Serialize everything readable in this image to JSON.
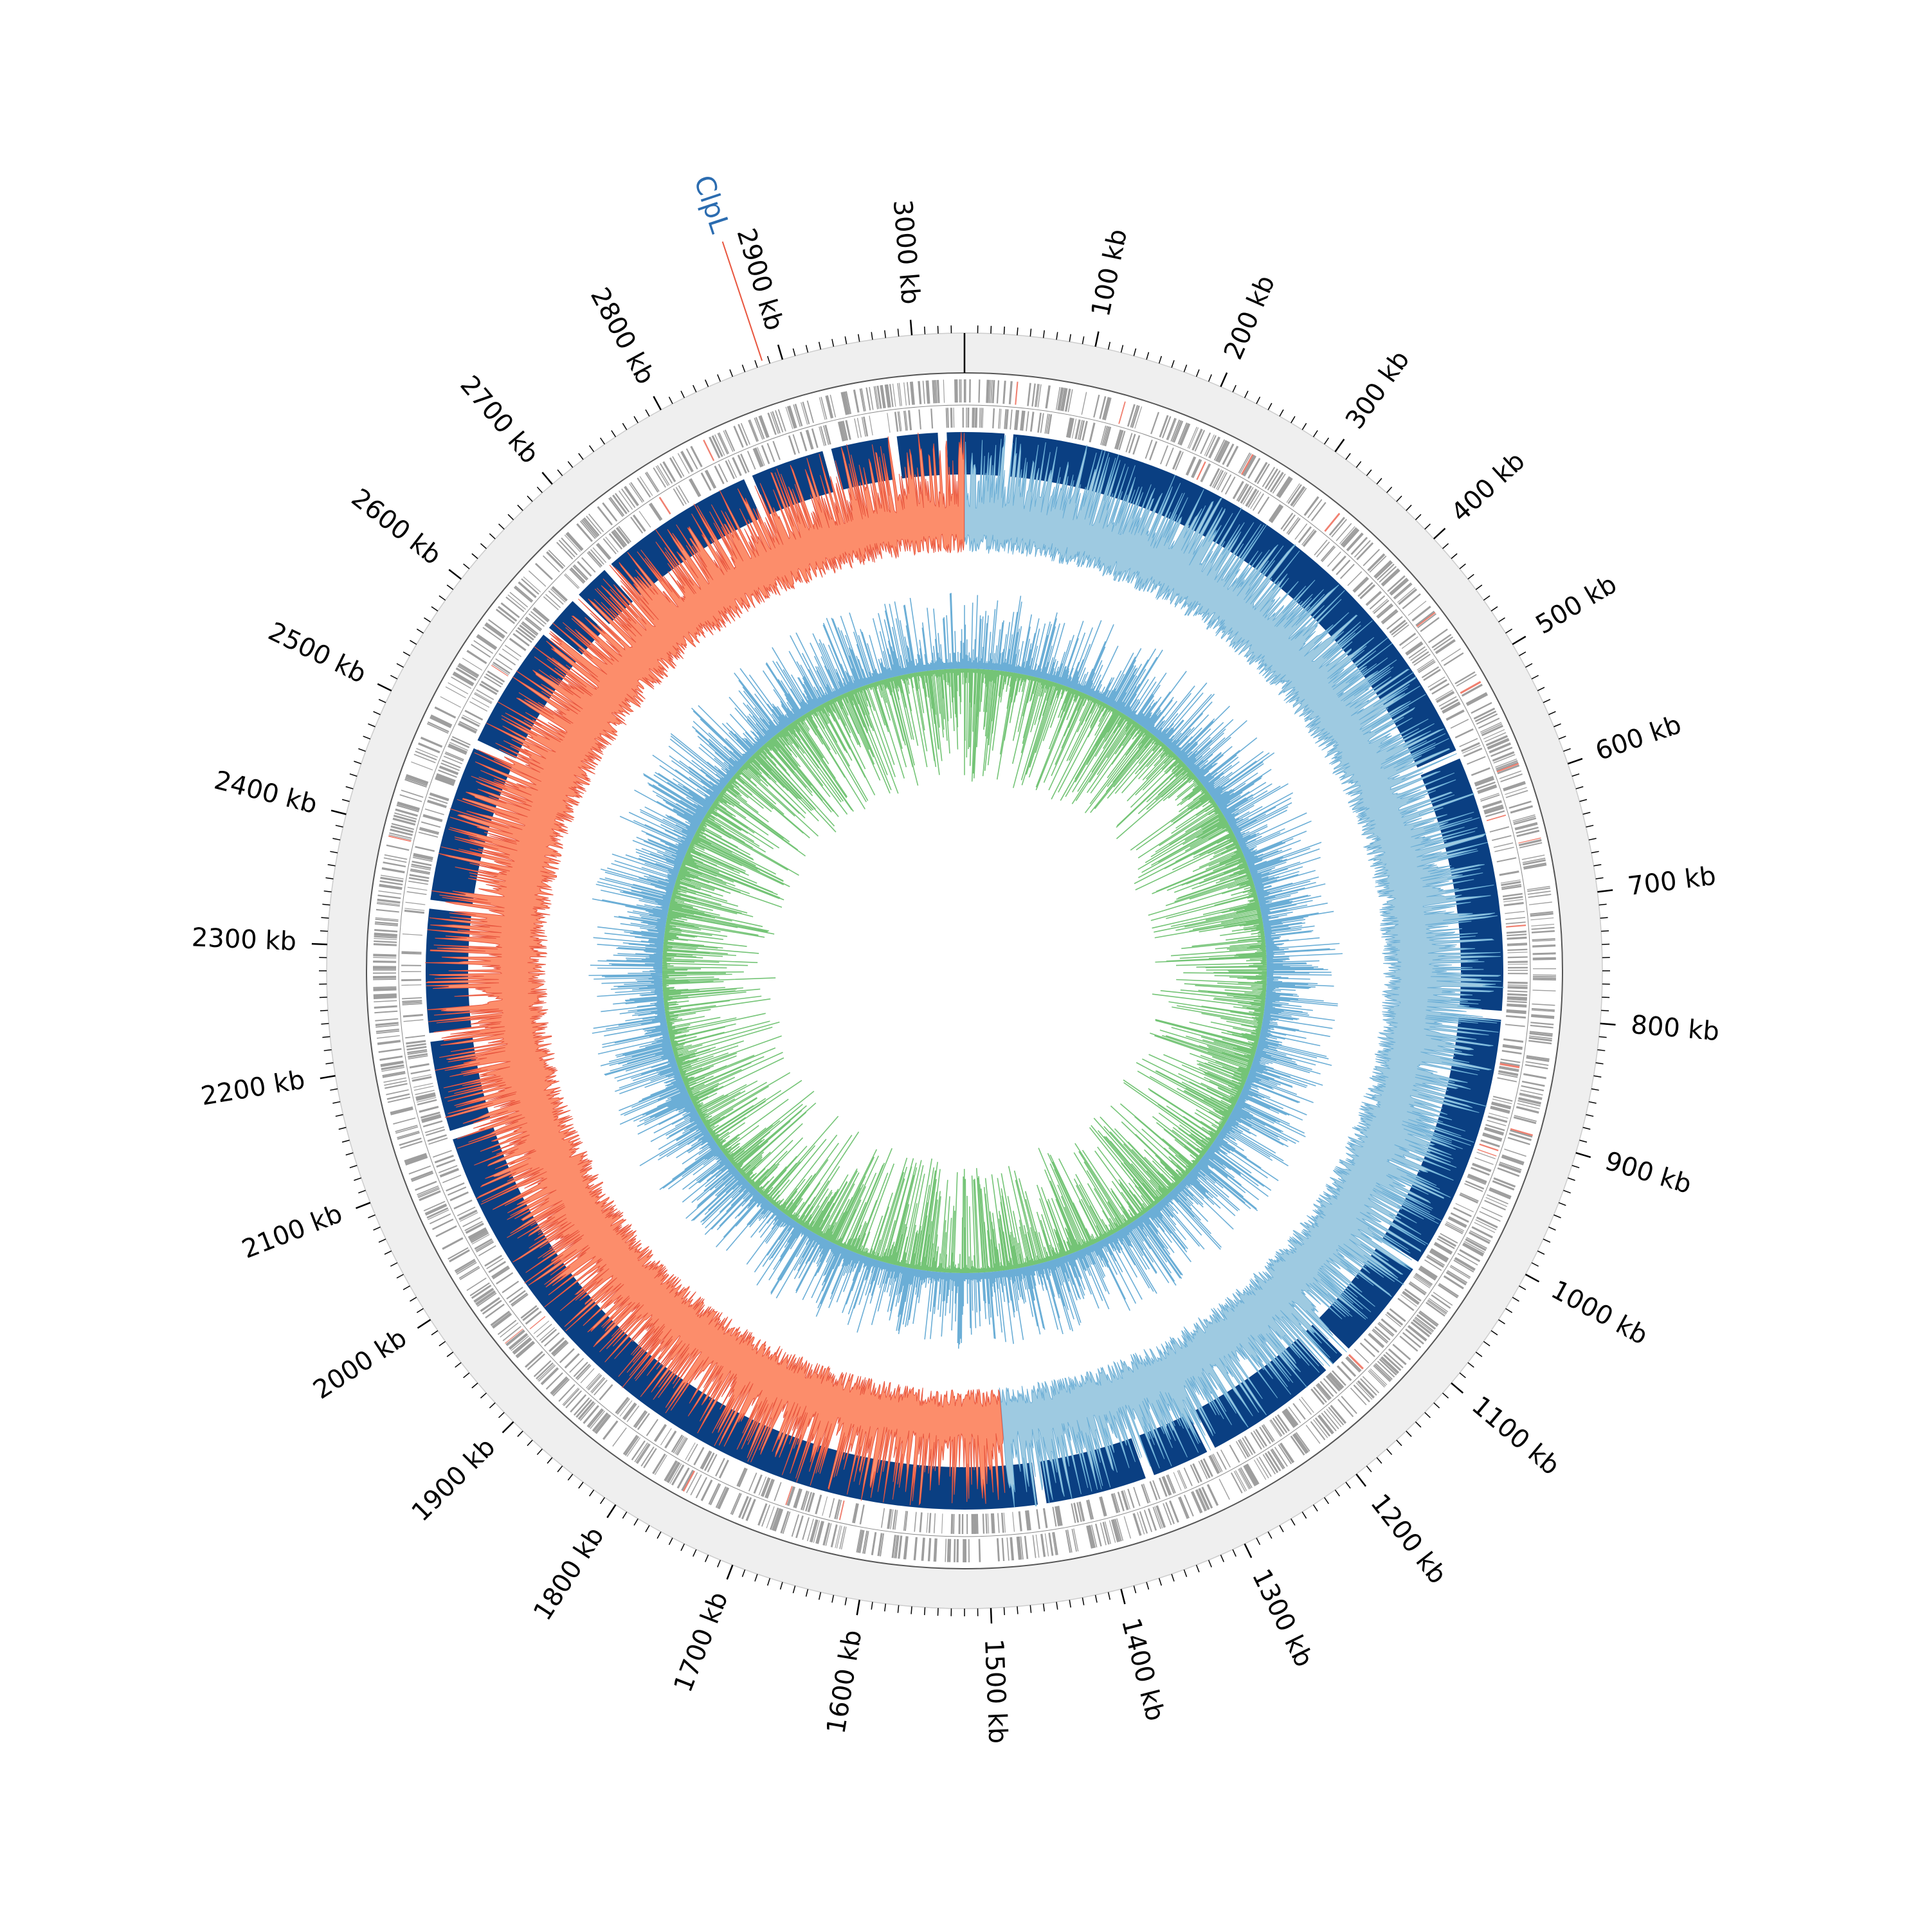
{
  "genome": {
    "length_kb": 3040,
    "tick_unit": "kb",
    "major_tick_step_kb": 100,
    "minor_tick_step_kb": 10
  },
  "tick_labels": [
    "100 kb",
    "200 kb",
    "300 kb",
    "400 kb",
    "500 kb",
    "600 kb",
    "700 kb",
    "800 kb",
    "900 kb",
    "1000 kb",
    "1100 kb",
    "1200 kb",
    "1300 kb",
    "1400 kb",
    "1500 kb",
    "1600 kb",
    "1700 kb",
    "1800 kb",
    "1900 kb",
    "2000 kb",
    "2100 kb",
    "2200 kb",
    "2300 kb",
    "2400 kb",
    "2500 kb",
    "2600 kb",
    "2700 kb",
    "2800 kb",
    "2900 kb",
    "3000 kb"
  ],
  "gene_annotation": {
    "label": "ClpL",
    "position_kb": 2885,
    "label_color": "#2b6cb0",
    "line_color": "#e8553e"
  },
  "colors": {
    "outer_band": "#efefef",
    "features": "#9e9e9e",
    "feature_highlight": "#f08070",
    "contig_blocks": "#0a3f82",
    "skew_positive": "#9ecae1",
    "skew_positive_line": "#6baed6",
    "skew_negative": "#fc8d6b",
    "skew_negative_line": "#e8553e",
    "gc_outward": "#6baed6",
    "gc_inward": "#74c476",
    "tick": "#000000",
    "text": "#000000"
  },
  "contig_gaps_kb": [
    2840,
    2915,
    2975,
    3020,
    40,
    1290,
    1350,
    1450,
    2220,
    560,
    800,
    1040,
    1140,
    1160,
    2130,
    2650,
    2610,
    2690,
    2490,
    2340
  ],
  "gc_skew_switch_kb": [
    0,
    1480
  ]
}
